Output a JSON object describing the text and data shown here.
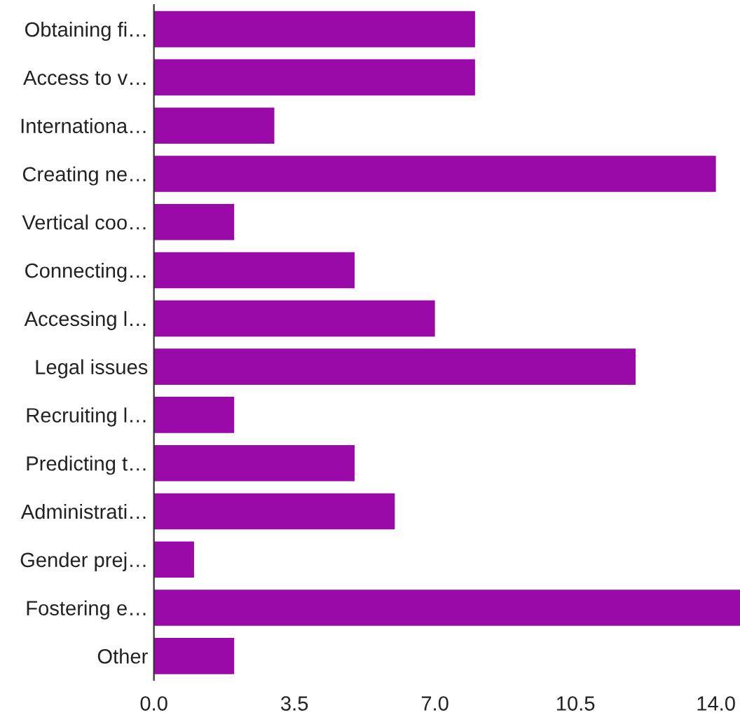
{
  "chart_data": {
    "type": "bar",
    "orientation": "horizontal",
    "categories": [
      "Obtaining fi…",
      "Access to v…",
      "Internationa…",
      "Creating ne…",
      "Vertical coo…",
      "Connecting…",
      "Accessing l…",
      "Legal issues",
      "Recruiting l…",
      "Predicting t…",
      "Administrati…",
      "Gender prej…",
      "Fostering e…",
      "Other"
    ],
    "values": [
      8,
      8,
      3,
      14,
      2,
      5,
      7,
      12,
      2,
      5,
      6,
      1,
      14.6,
      2
    ],
    "color": "#990aa8",
    "xlim": [
      0,
      14.6
    ],
    "xticks": [
      {
        "value": 0,
        "label": "0.0"
      },
      {
        "value": 3.5,
        "label": "3.5"
      },
      {
        "value": 7,
        "label": "7.0"
      },
      {
        "value": 10.5,
        "label": "10.5"
      },
      {
        "value": 14,
        "label": "14.0"
      }
    ],
    "grid": false,
    "legend": false
  }
}
